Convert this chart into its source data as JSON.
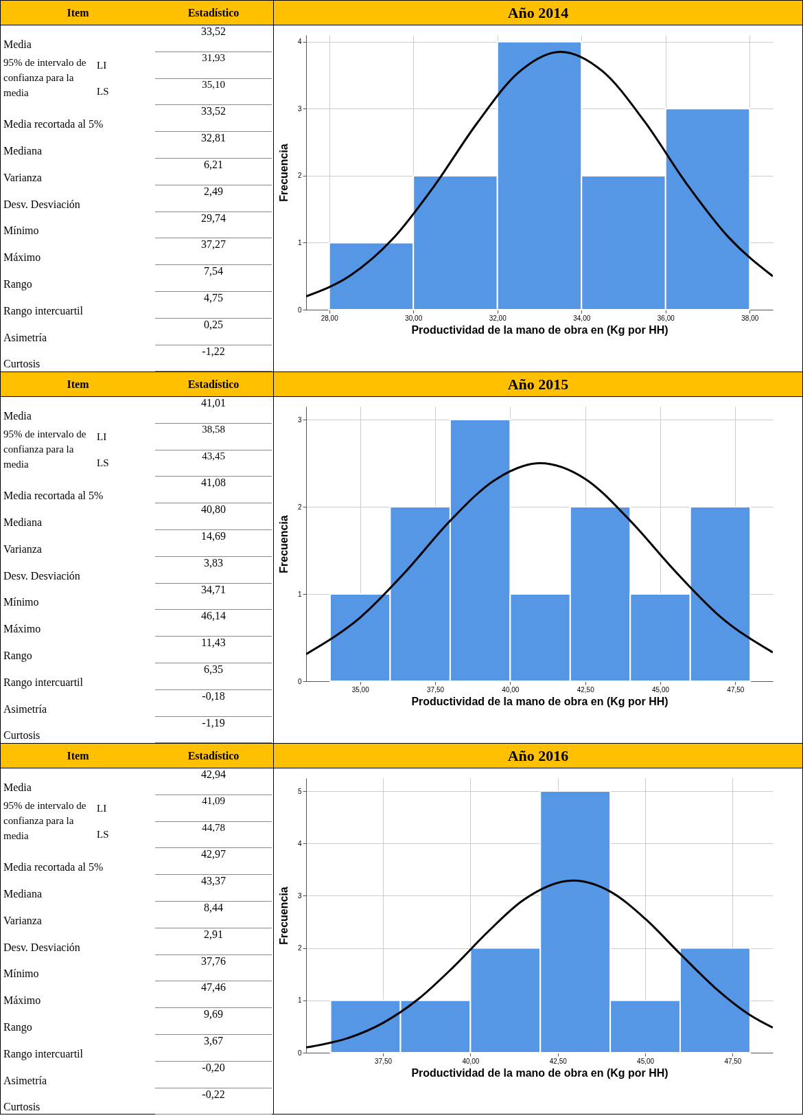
{
  "chart_data": [
    {
      "type": "other",
      "annotations": [
        "Item",
        "Estadístico",
        "Media",
        "33,52",
        "95% de intervalo de confianza para la media",
        "LI",
        "31,93",
        "LS",
        "35,10",
        "Media recortada al 5%",
        "33,52",
        "Mediana",
        "32,81",
        "Varianza",
        "6,21",
        "Desv. Desviación",
        "2,49",
        "Mínimo",
        "29,74",
        "Máximo",
        "37,27",
        "Rango",
        "7,54",
        "Rango intercuartil",
        "4,75",
        "Asimetría",
        "0,25",
        "Curtosis",
        "-1,22"
      ]
    },
    {
      "type": "histogram",
      "title": "Año 2014",
      "xlabel": "Productividad  de la mano de obra en  (Kg por HH)",
      "ylabel": "Frecuencia",
      "bins": [
        28,
        30,
        32,
        34,
        36,
        38
      ],
      "values": [
        1,
        2,
        4,
        2,
        3
      ],
      "color": "#5596e5",
      "series": [
        {
          "type": "line",
          "color": "#000000",
          "x": [
            27.45,
            28.5,
            29.5,
            30.5,
            31.5,
            32.5,
            33.5,
            34.5,
            35.5,
            36.5,
            37.5,
            38.55
          ],
          "values": [
            0.2,
            0.51,
            1.05,
            1.85,
            2.77,
            3.54,
            3.85,
            3.56,
            2.81,
            1.88,
            1.08,
            0.5
          ]
        }
      ],
      "xlim": [
        27.45,
        38.55
      ],
      "ylim": [
        0,
        4.1
      ],
      "xticks": [
        {
          "value": 28,
          "label": "28,00"
        },
        {
          "value": 30,
          "label": "30,00"
        },
        {
          "value": 32,
          "label": "32,00"
        },
        {
          "value": 34,
          "label": "34,00"
        },
        {
          "value": 36,
          "label": "36,00"
        },
        {
          "value": 38,
          "label": "38,00"
        }
      ],
      "yticks": [
        0,
        1,
        2,
        3,
        4
      ],
      "grid": true
    },
    {
      "type": "other",
      "annotations": [
        "Item",
        "Estadístico",
        "Media",
        "41,01",
        "95% de intervalo de confianza para la media",
        "LI",
        "38,58",
        "LS",
        "43,45",
        "Media recortada al 5%",
        "41,08",
        "Mediana",
        "40,80",
        "Varianza",
        "14,69",
        "Desv. Desviación",
        "3,83",
        "Mínimo",
        "34,71",
        "Máximo",
        "46,14",
        "Rango",
        "11,43",
        "Rango intercuartil",
        "6,35",
        "Asimetría",
        "-0,18",
        "Curtosis",
        "-1,19"
      ]
    },
    {
      "type": "histogram",
      "title": "Año 2015",
      "xlabel": "Productividad  de la mano de obra en  (Kg por HH)",
      "ylabel": "Frecuencia",
      "bins": [
        34,
        36,
        38,
        40,
        42,
        44,
        46,
        48
      ],
      "values": [
        1,
        2,
        3,
        1,
        2,
        1,
        2
      ],
      "color": "#5596e5",
      "series": [
        {
          "type": "line",
          "color": "#000000",
          "x": [
            33.2,
            35,
            36.5,
            38,
            39.5,
            41,
            42.5,
            44,
            45.5,
            47,
            48.75
          ],
          "values": [
            0.31,
            0.73,
            1.25,
            1.84,
            2.31,
            2.5,
            2.32,
            1.84,
            1.26,
            0.74,
            0.33
          ]
        }
      ],
      "xlim": [
        33.2,
        48.75
      ],
      "ylim": [
        0,
        3.15
      ],
      "xticks": [
        {
          "value": 35,
          "label": "35,00"
        },
        {
          "value": 37.5,
          "label": "37,50"
        },
        {
          "value": 40,
          "label": "40,00"
        },
        {
          "value": 42.5,
          "label": "42,50"
        },
        {
          "value": 45,
          "label": "45,00"
        },
        {
          "value": 47.5,
          "label": "47,50"
        }
      ],
      "yticks": [
        0,
        1,
        2,
        3
      ],
      "grid": true
    },
    {
      "type": "other",
      "annotations": [
        "Item",
        "Estadístico",
        "Media",
        "42,94",
        "95% de intervalo de confianza para la media",
        "LI",
        "41,09",
        "LS",
        "44,78",
        "Media recortada al 5%",
        "42,97",
        "Mediana",
        "43,37",
        "Varianza",
        "8,44",
        "Desv. Desviación",
        "2,91",
        "Mínimo",
        "37,76",
        "Máximo",
        "47,46",
        "Rango",
        "9,69",
        "Rango intercuartil",
        "3,67",
        "Asimetría",
        "-0,20",
        "Curtosis",
        "-0,22"
      ]
    },
    {
      "type": "histogram",
      "title": "Año 2016",
      "xlabel": "Productividad  de la mano de obra en  (Kg por HH)",
      "ylabel": "Frecuencia",
      "bins": [
        36,
        38,
        40,
        42,
        44,
        46,
        48
      ],
      "values": [
        1,
        1,
        2,
        5,
        1,
        2
      ],
      "color": "#5596e5",
      "series": [
        {
          "type": "line",
          "color": "#000000",
          "x": [
            35.3,
            36.5,
            37.5,
            38.5,
            39.5,
            40.5,
            41.5,
            42.94,
            44,
            45,
            46,
            47,
            48,
            48.65
          ],
          "values": [
            0.1,
            0.28,
            0.57,
            1.02,
            1.63,
            2.31,
            2.91,
            3.29,
            3.08,
            2.56,
            1.89,
            1.24,
            0.72,
            0.48
          ]
        }
      ],
      "xlim": [
        35.3,
        48.65
      ],
      "ylim": [
        0,
        5.25
      ],
      "xticks": [
        {
          "value": 37.5,
          "label": "37,50"
        },
        {
          "value": 40,
          "label": "40,00"
        },
        {
          "value": 42.5,
          "label": "42,50"
        },
        {
          "value": 45,
          "label": "45,00"
        },
        {
          "value": 47.5,
          "label": "47,50"
        }
      ],
      "yticks": [
        0,
        1,
        2,
        3,
        4,
        5
      ],
      "grid": true
    }
  ]
}
